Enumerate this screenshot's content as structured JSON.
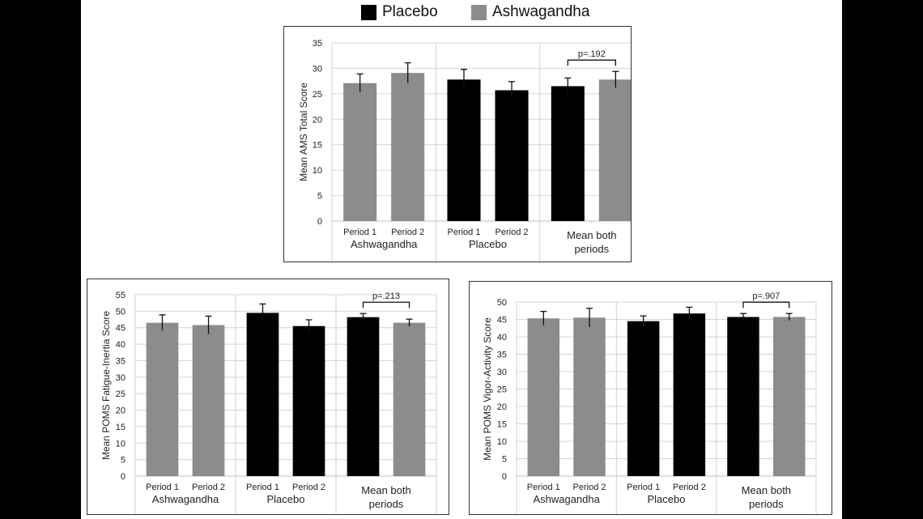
{
  "legend": {
    "placebo_label": "Placebo",
    "ashwagandha_label": "Ashwagandha",
    "placebo_color": "#000000",
    "ashwagandha_color": "#8c8c8c"
  },
  "chart_data": [
    {
      "type": "bar",
      "ylabel": "Mean AMS Total Score",
      "ylim": [
        0,
        35
      ],
      "yticks": [
        0,
        5,
        10,
        15,
        20,
        25,
        30,
        35
      ],
      "grid": true,
      "groups": [
        {
          "label": [
            "Ashwagandha"
          ],
          "bars": [
            {
              "tick": "Period 1",
              "treatment": "Ashwagandha",
              "value": 27.1,
              "error": 1.8
            },
            {
              "tick": "Period 2",
              "treatment": "Ashwagandha",
              "value": 29.1,
              "error": 2.0
            }
          ]
        },
        {
          "label": [
            "Placebo"
          ],
          "bars": [
            {
              "tick": "Period 1",
              "treatment": "Placebo",
              "value": 27.8,
              "error": 2.0
            },
            {
              "tick": "Period 2",
              "treatment": "Placebo",
              "value": 25.7,
              "error": 1.7
            }
          ]
        },
        {
          "label": [
            "Mean both",
            "periods"
          ],
          "bars": [
            {
              "tick": "",
              "treatment": "Placebo",
              "value": 26.5,
              "error": 1.6
            },
            {
              "tick": "",
              "treatment": "Ashwagandha",
              "value": 27.8,
              "error": 1.6
            }
          ]
        }
      ],
      "annotation": "p=.192"
    },
    {
      "type": "bar",
      "ylabel": "Mean POMS Fatigue-Inertia Score",
      "ylim": [
        0,
        55
      ],
      "yticks": [
        0,
        5,
        10,
        15,
        20,
        25,
        30,
        35,
        40,
        45,
        50,
        55
      ],
      "grid": true,
      "groups": [
        {
          "label": [
            "Ashwagandha"
          ],
          "bars": [
            {
              "tick": "Period 1",
              "treatment": "Ashwagandha",
              "value": 46.5,
              "error": 2.4
            },
            {
              "tick": "Period 2",
              "treatment": "Ashwagandha",
              "value": 45.8,
              "error": 2.7
            }
          ]
        },
        {
          "label": [
            "Placebo"
          ],
          "bars": [
            {
              "tick": "Period 1",
              "treatment": "Placebo",
              "value": 49.5,
              "error": 2.7
            },
            {
              "tick": "Period 2",
              "treatment": "Placebo",
              "value": 45.5,
              "error": 1.9
            }
          ]
        },
        {
          "label": [
            "Mean both",
            "periods"
          ],
          "bars": [
            {
              "tick": "",
              "treatment": "Placebo",
              "value": 48.2,
              "error": 1.1
            },
            {
              "tick": "",
              "treatment": "Ashwagandha",
              "value": 46.5,
              "error": 1.1
            }
          ]
        }
      ],
      "annotation": "p=.213"
    },
    {
      "type": "bar",
      "ylabel": "Mean POMS Vigor-Activity Score",
      "ylim": [
        0,
        50
      ],
      "yticks": [
        0,
        5,
        10,
        15,
        20,
        25,
        30,
        35,
        40,
        45,
        50
      ],
      "grid": true,
      "groups": [
        {
          "label": [
            "Ashwagandha"
          ],
          "bars": [
            {
              "tick": "Period 1",
              "treatment": "Ashwagandha",
              "value": 45.3,
              "error": 2.0
            },
            {
              "tick": "Period 2",
              "treatment": "Ashwagandha",
              "value": 45.5,
              "error": 2.7
            }
          ]
        },
        {
          "label": [
            "Placebo"
          ],
          "bars": [
            {
              "tick": "Period 1",
              "treatment": "Placebo",
              "value": 44.5,
              "error": 1.5
            },
            {
              "tick": "Period 2",
              "treatment": "Placebo",
              "value": 46.7,
              "error": 1.8
            }
          ]
        },
        {
          "label": [
            "Mean both",
            "periods"
          ],
          "bars": [
            {
              "tick": "",
              "treatment": "Placebo",
              "value": 45.7,
              "error": 1.0
            },
            {
              "tick": "",
              "treatment": "Ashwagandha",
              "value": 45.7,
              "error": 1.0
            }
          ]
        }
      ],
      "annotation": "p=.907"
    }
  ]
}
